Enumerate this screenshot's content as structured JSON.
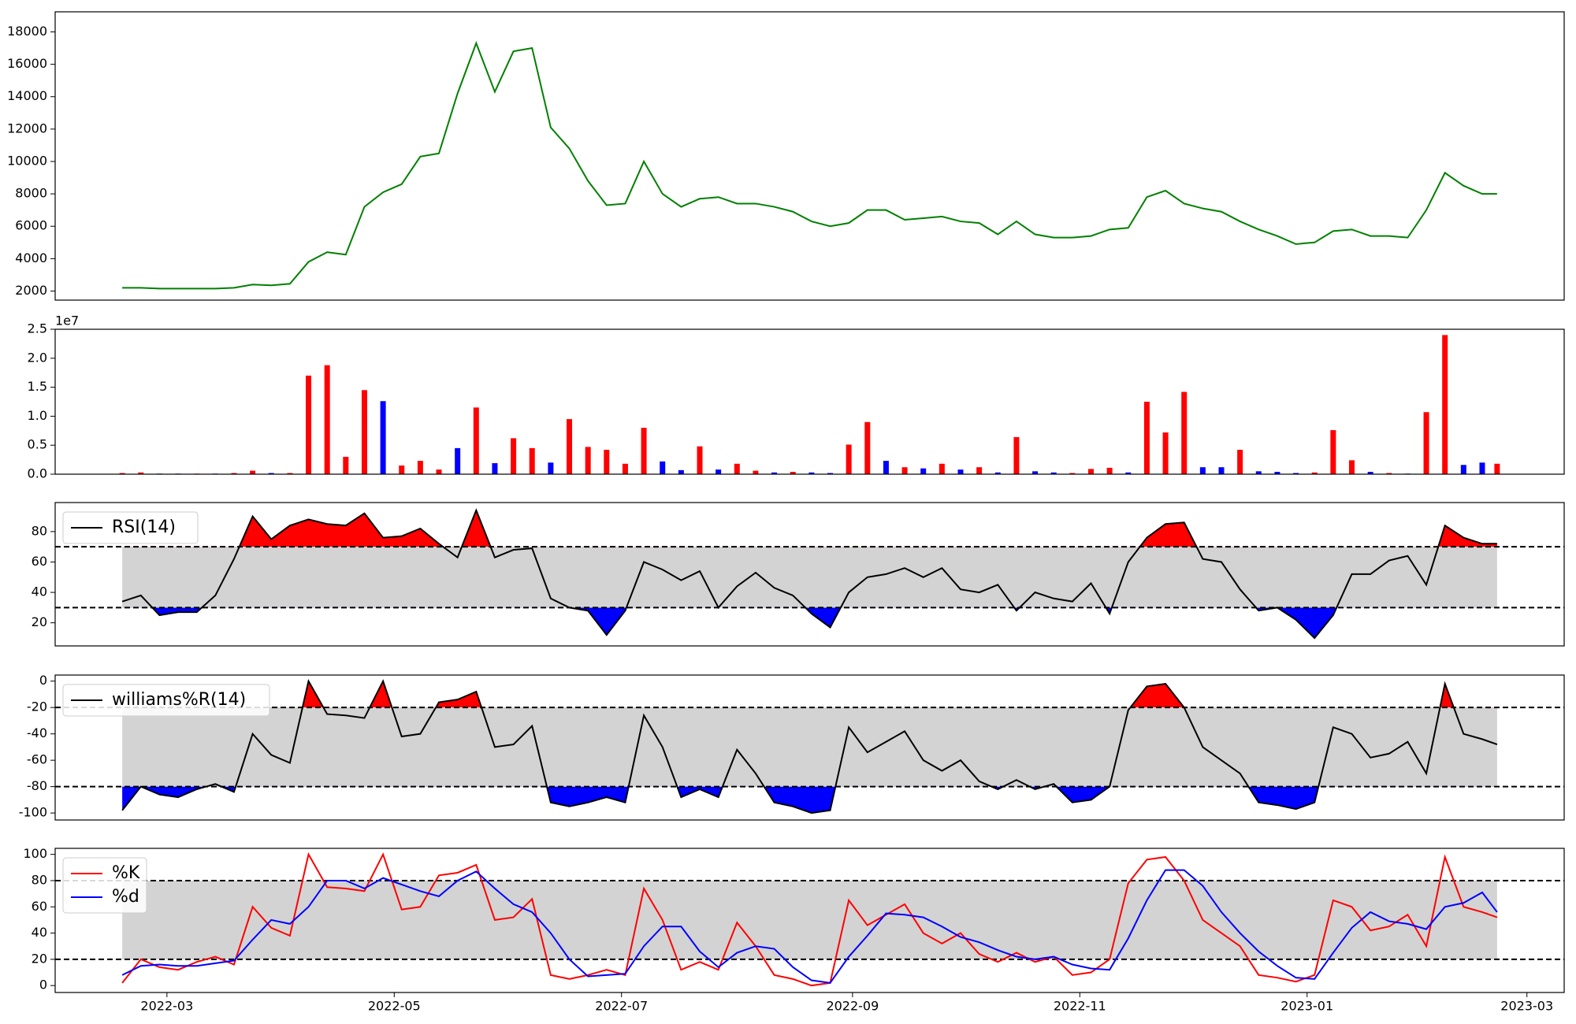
{
  "chart_data": [
    {
      "type": "line",
      "color": "green",
      "x": [
        "2022-02-17",
        "2022-02-22",
        "2022-02-27",
        "2022-03-04",
        "2022-03-09",
        "2022-03-14",
        "2022-03-19",
        "2022-03-24",
        "2022-03-29",
        "2022-04-03",
        "2022-04-08",
        "2022-04-13",
        "2022-04-18",
        "2022-04-23",
        "2022-04-28",
        "2022-05-03",
        "2022-05-08",
        "2022-05-13",
        "2022-05-18",
        "2022-05-23",
        "2022-05-28",
        "2022-06-02",
        "2022-06-07",
        "2022-06-12",
        "2022-06-17",
        "2022-06-22",
        "2022-06-27",
        "2022-07-02",
        "2022-07-07",
        "2022-07-12",
        "2022-07-17",
        "2022-07-22",
        "2022-07-27",
        "2022-08-01",
        "2022-08-06",
        "2022-08-11",
        "2022-08-16",
        "2022-08-21",
        "2022-08-26",
        "2022-08-31",
        "2022-09-05",
        "2022-09-10",
        "2022-09-15",
        "2022-09-20",
        "2022-09-25",
        "2022-09-30",
        "2022-10-05",
        "2022-10-10",
        "2022-10-15",
        "2022-10-20",
        "2022-10-25",
        "2022-10-30",
        "2022-11-04",
        "2022-11-09",
        "2022-11-14",
        "2022-11-19",
        "2022-11-24",
        "2022-11-29",
        "2022-12-04",
        "2022-12-09",
        "2022-12-14",
        "2022-12-19",
        "2022-12-24",
        "2022-12-29",
        "2023-01-03",
        "2023-01-08",
        "2023-01-13",
        "2023-01-18",
        "2023-01-23",
        "2023-01-28",
        "2023-02-02",
        "2023-02-07",
        "2023-02-12",
        "2023-02-17",
        "2023-02-21"
      ],
      "xlim": [
        "2022-01-30",
        "2023-03-11"
      ],
      "values": [
        2200,
        2200,
        2150,
        2150,
        2150,
        2150,
        2200,
        2400,
        2350,
        2450,
        3800,
        4400,
        4250,
        7200,
        8100,
        8600,
        10300,
        10500,
        14200,
        17300,
        14300,
        16800,
        17000,
        12100,
        10800,
        8800,
        7300,
        7400,
        10000,
        8000,
        7200,
        7700,
        7800,
        7400,
        7400,
        7200,
        6900,
        6300,
        6000,
        6200,
        7000,
        7000,
        6400,
        6500,
        6600,
        6300,
        6200,
        5500,
        6300,
        5500,
        5300,
        5300,
        5400,
        5800,
        5900,
        7800,
        8200,
        7400,
        7100,
        6900,
        6300,
        5800,
        5400,
        4900,
        5000,
        5700,
        5800,
        5400,
        5400,
        5300,
        7000,
        9300,
        8500,
        8000,
        8000
      ],
      "ylim": [
        1440,
        19240
      ],
      "yticks": [
        2000,
        4000,
        6000,
        8000,
        10000,
        12000,
        14000,
        16000,
        18000
      ]
    },
    {
      "type": "bar",
      "values": [
        200000,
        300000,
        100000,
        100000,
        100000,
        100000,
        200000,
        600000,
        200000,
        200000,
        17000000,
        18800000,
        3000000,
        14500000,
        12600000,
        1500000,
        2300000,
        800000,
        4500000,
        11500000,
        1900000,
        6200000,
        4500000,
        2000000,
        9500000,
        4700000,
        4200000,
        1800000,
        8000000,
        2200000,
        700000,
        4800000,
        800000,
        1800000,
        600000,
        300000,
        400000,
        300000,
        200000,
        5100000,
        9000000,
        2300000,
        1200000,
        1000000,
        1800000,
        800000,
        1200000,
        300000,
        6400000,
        500000,
        300000,
        200000,
        900000,
        1100000,
        300000,
        12500000,
        7200000,
        14200000,
        1200000,
        1200000,
        4200000,
        500000,
        400000,
        200000,
        300000,
        7600000,
        2400000,
        400000,
        200000,
        100000,
        10700000,
        24000000,
        1600000,
        2000000,
        1800000
      ],
      "colors": [
        "red",
        "red",
        "blue",
        "blue",
        "red",
        "blue",
        "red",
        "red",
        "blue",
        "red",
        "red",
        "red",
        "red",
        "red",
        "blue",
        "red",
        "red",
        "red",
        "blue",
        "red",
        "blue",
        "red",
        "red",
        "blue",
        "red",
        "red",
        "red",
        "red",
        "red",
        "blue",
        "blue",
        "red",
        "blue",
        "red",
        "red",
        "blue",
        "red",
        "blue",
        "blue",
        "red",
        "red",
        "blue",
        "red",
        "blue",
        "red",
        "blue",
        "red",
        "blue",
        "red",
        "blue",
        "blue",
        "red",
        "red",
        "red",
        "blue",
        "red",
        "red",
        "red",
        "blue",
        "blue",
        "red",
        "blue",
        "blue",
        "blue",
        "red",
        "red",
        "red",
        "blue",
        "red",
        "blue",
        "red",
        "red",
        "blue",
        "blue",
        "red"
      ],
      "ylim": [
        0,
        25000000
      ],
      "yticks": [
        {
          "value": 0,
          "label": "0.0"
        },
        {
          "value": 5000000,
          "label": "0.5"
        },
        {
          "value": 10000000,
          "label": "1.0"
        },
        {
          "value": 15000000,
          "label": "1.5"
        },
        {
          "value": 20000000,
          "label": "2.0"
        },
        {
          "value": 25000000,
          "label": "2.5"
        }
      ],
      "offset_label": "1e7"
    },
    {
      "type": "oscillator",
      "series": [
        {
          "name": "RSI(14)",
          "color": "black",
          "values": [
            34,
            38,
            25,
            27,
            27,
            38,
            62,
            90,
            75,
            84,
            88,
            85,
            84,
            92,
            76,
            77,
            82,
            72,
            63,
            94,
            63,
            68,
            69,
            36,
            30,
            28,
            12,
            28,
            60,
            55,
            48,
            54,
            30,
            44,
            53,
            43,
            38,
            26,
            17,
            40,
            50,
            52,
            56,
            50,
            56,
            42,
            40,
            45,
            28,
            40,
            36,
            34,
            46,
            26,
            60,
            76,
            85,
            86,
            62,
            60,
            42,
            28,
            30,
            22,
            10,
            25,
            52,
            52,
            61,
            64,
            45,
            84,
            76,
            72,
            72
          ]
        }
      ],
      "thresholds": [
        70,
        30
      ],
      "upper_fill": "red",
      "lower_fill": "blue",
      "band_color": "lightgray",
      "ylim": [
        4.8,
        99.1
      ],
      "yticks": [
        20,
        40,
        60,
        80
      ],
      "legend": "upper left"
    },
    {
      "type": "oscillator",
      "series": [
        {
          "name": "williams%R(14)",
          "color": "black",
          "values": [
            -98,
            -80,
            -86,
            -88,
            -82,
            -78,
            -84,
            -40,
            -56,
            -62,
            0,
            -25,
            -26,
            -28,
            0,
            -42,
            -40,
            -16,
            -14,
            -8,
            -50,
            -48,
            -34,
            -92,
            -95,
            -92,
            -88,
            -92,
            -26,
            -50,
            -88,
            -82,
            -88,
            -52,
            -70,
            -92,
            -95,
            -100,
            -98,
            -35,
            -54,
            -46,
            -38,
            -60,
            -68,
            -60,
            -76,
            -82,
            -75,
            -82,
            -78,
            -92,
            -90,
            -80,
            -22,
            -4,
            -2,
            -20,
            -50,
            -60,
            -70,
            -92,
            -94,
            -97,
            -92,
            -35,
            -40,
            -58,
            -55,
            -46,
            -70,
            -2,
            -40,
            -44,
            -48
          ]
        }
      ],
      "thresholds": [
        -20,
        -80
      ],
      "upper_fill": "red",
      "lower_fill": "blue",
      "band_color": "lightgray",
      "ylim": [
        -105.3,
        4.6
      ],
      "yticks": [
        -100,
        -80,
        -60,
        -40,
        -20,
        0
      ],
      "legend": "upper left"
    },
    {
      "type": "oscillator",
      "series": [
        {
          "name": "%K",
          "color": "red",
          "values": [
            2,
            20,
            14,
            12,
            18,
            22,
            16,
            60,
            44,
            38,
            100,
            75,
            74,
            72,
            100,
            58,
            60,
            84,
            86,
            92,
            50,
            52,
            66,
            8,
            5,
            8,
            12,
            8,
            74,
            50,
            12,
            18,
            12,
            48,
            30,
            8,
            5,
            0,
            2,
            65,
            46,
            54,
            62,
            40,
            32,
            40,
            24,
            18,
            25,
            18,
            22,
            8,
            10,
            20,
            78,
            96,
            98,
            80,
            50,
            40,
            30,
            8,
            6,
            3,
            8,
            65,
            60,
            42,
            45,
            54,
            30,
            98,
            60,
            56,
            52
          ]
        },
        {
          "name": "%d",
          "color": "blue",
          "values": [
            8,
            15,
            16,
            15,
            15,
            17,
            19,
            35,
            50,
            47,
            60,
            80,
            80,
            74,
            82,
            77,
            72,
            68,
            80,
            87,
            74,
            62,
            56,
            40,
            20,
            7,
            8,
            9,
            30,
            45,
            45,
            26,
            14,
            25,
            30,
            28,
            14,
            4,
            2,
            22,
            38,
            55,
            54,
            52,
            45,
            37,
            33,
            27,
            22,
            20,
            22,
            16,
            13,
            12,
            36,
            65,
            88,
            88,
            76,
            56,
            40,
            26,
            15,
            6,
            5,
            25,
            44,
            56,
            49,
            47,
            43,
            60,
            63,
            71,
            56
          ]
        }
      ],
      "thresholds": [
        80,
        20
      ],
      "band_color": "lightgray",
      "ylim": [
        -5.3,
        104.6
      ],
      "yticks": [
        0,
        20,
        40,
        60,
        80,
        100
      ],
      "legend": "upper left",
      "xticks": [
        {
          "value": "2022-03-01",
          "label": "2022-03"
        },
        {
          "value": "2022-05-01",
          "label": "2022-05"
        },
        {
          "value": "2022-07-01",
          "label": "2022-07"
        },
        {
          "value": "2022-09-01",
          "label": "2022-09"
        },
        {
          "value": "2022-11-01",
          "label": "2022-11"
        },
        {
          "value": "2023-01-01",
          "label": "2023-01"
        },
        {
          "value": "2023-03-01",
          "label": "2023-03"
        }
      ]
    }
  ]
}
